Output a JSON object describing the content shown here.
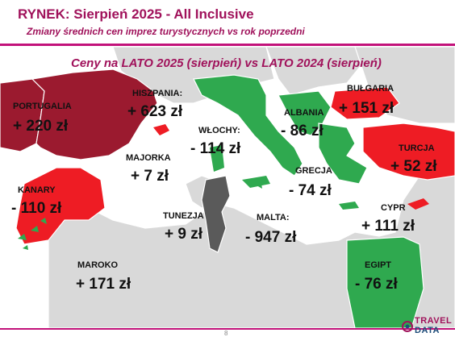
{
  "header": {
    "title": "RYNEK: Sierpień 2025 - All Inclusive",
    "subtitle": "Zmiany średnich cen imprez turystycznych vs rok poprzedni"
  },
  "map": {
    "title": "Ceny na LATO 2025 (sierpień) vs  LATO 2024 (sierpień)",
    "colors": {
      "increase_large": "#9b1a2f",
      "increase": "#ee1c24",
      "decrease": "#2fa94f",
      "decrease_large": "#5a5a5a",
      "land": "#d9d9d9",
      "sea": "#ffffff"
    },
    "countries": [
      {
        "name": "PORTUGALIA",
        "value": "+ 220 zł"
      },
      {
        "name": "HISZPANIA:",
        "value": "+ 623 zł"
      },
      {
        "name": "MAJORKA",
        "value": "+ 7 zł"
      },
      {
        "name": "KANARY",
        "value": "- 110 zł"
      },
      {
        "name": "WŁOCHY:",
        "value": "- 114 zł"
      },
      {
        "name": "ALBANIA",
        "value": "- 86 zł"
      },
      {
        "name": "BUŁGARIA",
        "value": "+ 151 zł"
      },
      {
        "name": "TURCJA",
        "value": "+ 52 zł"
      },
      {
        "name": "GRECJA",
        "value": "- 74 zł"
      },
      {
        "name": "TUNEZJA",
        "value": "+ 9 zł"
      },
      {
        "name": "MALTA:",
        "value": "- 947 zł"
      },
      {
        "name": "CYPR",
        "value": "+ 111 zł"
      },
      {
        "name": "MAROKO",
        "value": "+ 171 zł"
      },
      {
        "name": "EGIPT",
        "value": "- 76 zł"
      }
    ]
  },
  "footer": {
    "page": "8",
    "logo_line1": "TRAVEL",
    "logo_line2": "DATA"
  }
}
